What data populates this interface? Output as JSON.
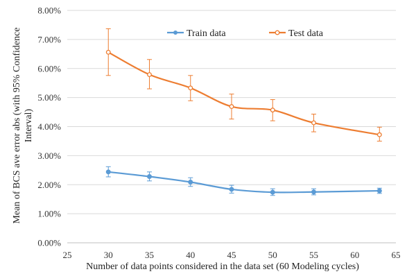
{
  "chart_data": {
    "type": "line",
    "title": "",
    "xlabel": "Number of data points considered in the data set (60 Modeling cycles)",
    "ylabel_lines": [
      "Mean of BCS ave error abs (with 95% Confidence",
      "Interval)"
    ],
    "xlim": [
      25,
      65
    ],
    "ylim": [
      0,
      0.08
    ],
    "xticks": [
      25,
      30,
      35,
      40,
      45,
      50,
      55,
      60,
      65
    ],
    "xtick_labels": [
      "25",
      "30",
      "35",
      "40",
      "45",
      "50",
      "55",
      "60",
      "65"
    ],
    "yticks": [
      0,
      0.01,
      0.02,
      0.03,
      0.04,
      0.05,
      0.06,
      0.07,
      0.08
    ],
    "ytick_labels": [
      "0.00%",
      "1.00%",
      "2.00%",
      "3.00%",
      "4.00%",
      "5.00%",
      "6.00%",
      "7.00%",
      "8.00%"
    ],
    "grid": "horizontal",
    "legend_position": "top",
    "series": [
      {
        "name": "Train data",
        "color": "#5b9bd5",
        "marker": "filled-circle",
        "x": [
          30,
          35,
          40,
          45,
          50,
          55,
          63
        ],
        "y": [
          0.0244,
          0.0228,
          0.0209,
          0.0184,
          0.0174,
          0.0175,
          0.0179
        ],
        "err_low": [
          0.0227,
          0.0213,
          0.0194,
          0.0171,
          0.0163,
          0.0165,
          0.017
        ],
        "err_high": [
          0.0262,
          0.0244,
          0.0224,
          0.0198,
          0.0186,
          0.0186,
          0.0188
        ]
      },
      {
        "name": "Test data",
        "color": "#ed7d31",
        "marker": "open-circle",
        "x": [
          30,
          35,
          40,
          45,
          50,
          55,
          63
        ],
        "y": [
          0.0656,
          0.0579,
          0.0533,
          0.0469,
          0.0457,
          0.0413,
          0.0372
        ],
        "err_low": [
          0.0576,
          0.053,
          0.0489,
          0.0426,
          0.042,
          0.0382,
          0.035
        ],
        "err_high": [
          0.0737,
          0.0631,
          0.0576,
          0.0512,
          0.0493,
          0.0443,
          0.0398
        ]
      }
    ]
  }
}
